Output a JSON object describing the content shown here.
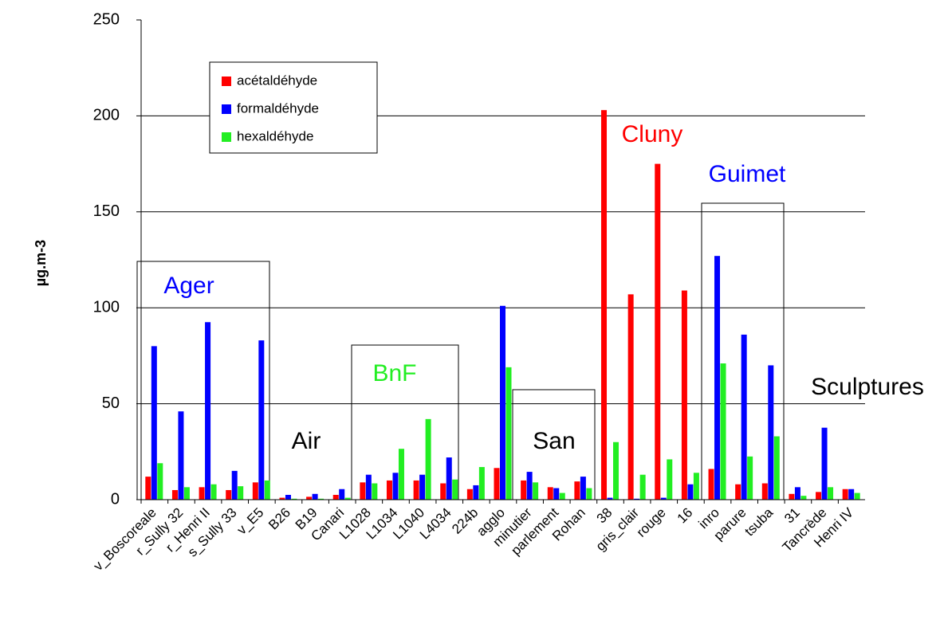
{
  "chart_data": {
    "type": "bar",
    "y_label": "µg.m-3",
    "categories": [
      "v_Boscoreale",
      "r_Sully 32",
      "r_Henri II",
      "s_Sully 33",
      "v_E5",
      "B26",
      "B19",
      "Canari",
      "L1028",
      "L1034",
      "L1040",
      "L4034",
      "224b",
      "agglo",
      "minutier",
      "parlement",
      "Rohan",
      "38",
      "gris_clair",
      "rouge",
      "16",
      "inro",
      "parure",
      "tsuba",
      "31",
      "Tancrède",
      "Henri IV"
    ],
    "series": [
      {
        "name": "acétaldéhyde",
        "color": "#ff0000",
        "values": [
          12,
          5,
          6.5,
          5,
          9,
          1,
          1.5,
          2.5,
          9,
          10,
          10,
          8.5,
          5.5,
          16.5,
          10,
          6.5,
          9.5,
          203,
          107,
          175,
          109,
          16,
          8,
          8.5,
          3,
          4,
          5.5
        ]
      },
      {
        "name": "formaldéhyde",
        "color": "#0000ff",
        "values": [
          80,
          46,
          92.5,
          15,
          83,
          2.5,
          3,
          5.5,
          13,
          14,
          13,
          22,
          7.5,
          101,
          14.5,
          6,
          12,
          1,
          0.5,
          1,
          8,
          127,
          86,
          70,
          6.5,
          37.5,
          5.5
        ]
      },
      {
        "name": "hexaldéhyde",
        "color": "#22ee22",
        "values": [
          19,
          6.5,
          8,
          7,
          10,
          0.5,
          0.5,
          1,
          8.5,
          26.5,
          42,
          10.5,
          17,
          69,
          9,
          3.5,
          6,
          30,
          13,
          21,
          14,
          71,
          22.5,
          33,
          2,
          6.5,
          3.5
        ]
      }
    ],
    "ylim": [
      0,
      250
    ],
    "yticks": [
      0,
      50,
      100,
      150,
      200,
      250
    ],
    "grid": true,
    "annotations": [
      {
        "text": "Ager",
        "color": "#0000ff"
      },
      {
        "text": "Air",
        "color": "#000000"
      },
      {
        "text": "BnF",
        "color": "#22ee22"
      },
      {
        "text": "San",
        "color": "#000000"
      },
      {
        "text": "Cluny",
        "color": "#ff0000"
      },
      {
        "text": "Guimet",
        "color": "#0000ff"
      },
      {
        "text": "Sculptures",
        "color": "#000000"
      }
    ]
  }
}
